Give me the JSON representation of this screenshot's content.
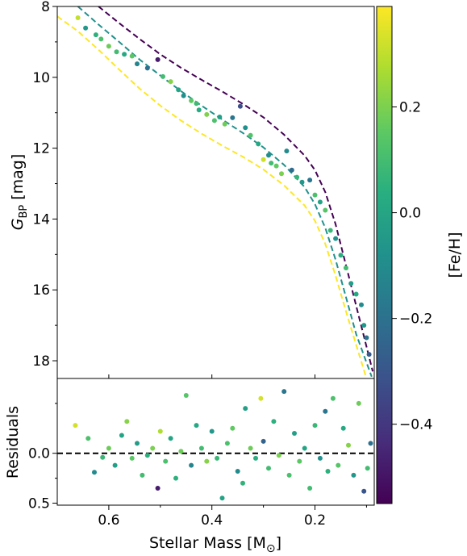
{
  "chart_data": [
    {
      "panel": "upper",
      "type": "scatter",
      "ylabel": "G_BP [mag]",
      "ylabel_main": "G",
      "ylabel_sub": "BP",
      "ylabel_unit": "[mag]",
      "xlim": [
        0.7,
        0.085
      ],
      "ylim": [
        18.5,
        8.0
      ],
      "yaxis_inverted": true,
      "yticks": [
        8,
        10,
        12,
        14,
        16,
        18
      ],
      "ytick_labels": [
        "8",
        "10",
        "12",
        "14",
        "16",
        "18"
      ],
      "grid": false,
      "series": [
        {
          "kind": "line",
          "style": "dashed",
          "color": "#440154",
          "points": [
            [
              0.62,
              8.0
            ],
            [
              0.58,
              8.47
            ],
            [
              0.54,
              8.92
            ],
            [
              0.5,
              9.35
            ],
            [
              0.46,
              9.73
            ],
            [
              0.42,
              10.07
            ],
            [
              0.38,
              10.4
            ],
            [
              0.34,
              10.75
            ],
            [
              0.3,
              11.13
            ],
            [
              0.26,
              11.62
            ],
            [
              0.22,
              12.21
            ],
            [
              0.2,
              12.62
            ],
            [
              0.18,
              13.24
            ],
            [
              0.16,
              14.15
            ],
            [
              0.14,
              15.3
            ],
            [
              0.12,
              16.45
            ],
            [
              0.1,
              17.6
            ],
            [
              0.088,
              18.3
            ]
          ]
        },
        {
          "kind": "line",
          "style": "dashed",
          "color": "#21918c",
          "points": [
            [
              0.66,
              8.0
            ],
            [
              0.62,
              8.51
            ],
            [
              0.58,
              9.0
            ],
            [
              0.54,
              9.5
            ],
            [
              0.5,
              9.95
            ],
            [
              0.46,
              10.39
            ],
            [
              0.42,
              10.8
            ],
            [
              0.38,
              11.19
            ],
            [
              0.34,
              11.57
            ],
            [
              0.3,
              11.98
            ],
            [
              0.26,
              12.47
            ],
            [
              0.22,
              13.1
            ],
            [
              0.2,
              13.58
            ],
            [
              0.18,
              14.25
            ],
            [
              0.16,
              15.15
            ],
            [
              0.14,
              16.2
            ],
            [
              0.12,
              17.25
            ],
            [
              0.1,
              18.05
            ],
            [
              0.09,
              18.45
            ]
          ]
        },
        {
          "kind": "line",
          "style": "dashed",
          "color": "#fde725",
          "points": [
            [
              0.7,
              8.28
            ],
            [
              0.66,
              8.7
            ],
            [
              0.62,
              9.22
            ],
            [
              0.58,
              9.78
            ],
            [
              0.54,
              10.32
            ],
            [
              0.5,
              10.8
            ],
            [
              0.46,
              11.22
            ],
            [
              0.42,
              11.59
            ],
            [
              0.38,
              11.93
            ],
            [
              0.34,
              12.24
            ],
            [
              0.3,
              12.6
            ],
            [
              0.26,
              13.05
            ],
            [
              0.22,
              13.62
            ],
            [
              0.2,
              14.05
            ],
            [
              0.18,
              14.7
            ],
            [
              0.16,
              15.6
            ],
            [
              0.14,
              16.6
            ],
            [
              0.12,
              17.55
            ],
            [
              0.1,
              18.5
            ]
          ]
        },
        {
          "kind": "points",
          "points": [
            [
              0.66,
              8.32,
              0.31
            ],
            [
              0.645,
              8.61,
              -0.05
            ],
            [
              0.625,
              8.8,
              0.05
            ],
            [
              0.615,
              8.92,
              0.12
            ],
            [
              0.6,
              9.12,
              0.18
            ],
            [
              0.585,
              9.28,
              0.1
            ],
            [
              0.57,
              9.35,
              0.02
            ],
            [
              0.555,
              9.4,
              0.15
            ],
            [
              0.545,
              9.62,
              -0.12
            ],
            [
              0.525,
              9.74,
              -0.2
            ],
            [
              0.505,
              9.5,
              -0.48
            ],
            [
              0.495,
              9.98,
              0.1
            ],
            [
              0.48,
              10.12,
              0.22
            ],
            [
              0.465,
              10.35,
              0.0
            ],
            [
              0.455,
              10.52,
              -0.08
            ],
            [
              0.44,
              10.66,
              0.16
            ],
            [
              0.43,
              10.74,
              0.09
            ],
            [
              0.425,
              10.92,
              0.03
            ],
            [
              0.41,
              11.05,
              0.21
            ],
            [
              0.395,
              11.22,
              0.12
            ],
            [
              0.385,
              11.12,
              -0.02
            ],
            [
              0.375,
              11.32,
              0.18
            ],
            [
              0.36,
              11.14,
              -0.18
            ],
            [
              0.345,
              10.82,
              -0.32
            ],
            [
              0.335,
              11.42,
              -0.08
            ],
            [
              0.325,
              11.64,
              0.13
            ],
            [
              0.31,
              11.88,
              0.02
            ],
            [
              0.3,
              12.32,
              0.32
            ],
            [
              0.29,
              12.2,
              -0.09
            ],
            [
              0.285,
              12.42,
              0.1
            ],
            [
              0.275,
              12.5,
              0.16
            ],
            [
              0.265,
              12.72,
              0.2
            ],
            [
              0.255,
              12.08,
              -0.1
            ],
            [
              0.245,
              12.62,
              -0.22
            ],
            [
              0.235,
              12.82,
              0.07
            ],
            [
              0.225,
              12.96,
              -0.05
            ],
            [
              0.21,
              12.9,
              -0.18
            ],
            [
              0.2,
              13.32,
              0.12
            ],
            [
              0.19,
              13.52,
              0.0
            ],
            [
              0.18,
              13.75,
              0.14
            ],
            [
              0.17,
              14.32,
              0.08
            ],
            [
              0.16,
              14.55,
              -0.07
            ],
            [
              0.15,
              15.02,
              0.04
            ],
            [
              0.14,
              15.38,
              0.1
            ],
            [
              0.13,
              15.82,
              -0.03
            ],
            [
              0.12,
              16.12,
              0.02
            ],
            [
              0.11,
              16.42,
              -0.1
            ],
            [
              0.105,
              17.0,
              -0.05
            ],
            [
              0.1,
              17.35,
              -0.18
            ],
            [
              0.095,
              17.82,
              -0.28
            ]
          ]
        }
      ]
    },
    {
      "panel": "lower",
      "type": "scatter",
      "xlabel": "Stellar Mass [M",
      "xlabel_sub": "⊙",
      "xlabel_close": "]",
      "ylabel": "Residuals",
      "xlim": [
        0.7,
        0.085
      ],
      "ylim": [
        0.52,
        -0.75
      ],
      "yaxis_inverted": true,
      "xticks": [
        0.6,
        0.4,
        0.2
      ],
      "xtick_labels": [
        "0.6",
        "0.4",
        "0.2"
      ],
      "yticks": [
        0.0,
        0.5
      ],
      "ytick_labels": [
        "0.0",
        "0.5"
      ],
      "reference_line": {
        "y": 0.0,
        "style": "dashed",
        "color": "#000000"
      },
      "grid": false,
      "points": [
        [
          0.665,
          -0.28,
          0.33
        ],
        [
          0.64,
          -0.15,
          0.12
        ],
        [
          0.628,
          0.19,
          -0.1
        ],
        [
          0.612,
          0.04,
          0.08
        ],
        [
          0.6,
          -0.05,
          0.18
        ],
        [
          0.588,
          0.12,
          -0.02
        ],
        [
          0.575,
          -0.18,
          0.0
        ],
        [
          0.565,
          -0.32,
          0.22
        ],
        [
          0.555,
          0.05,
          0.15
        ],
        [
          0.545,
          -0.1,
          -0.03
        ],
        [
          0.535,
          0.22,
          0.1
        ],
        [
          0.525,
          0.02,
          0.05
        ],
        [
          0.515,
          -0.05,
          0.2
        ],
        [
          0.505,
          0.35,
          -0.48
        ],
        [
          0.5,
          -0.22,
          0.28
        ],
        [
          0.49,
          0.08,
          0.12
        ],
        [
          0.48,
          -0.15,
          0.0
        ],
        [
          0.47,
          0.25,
          0.05
        ],
        [
          0.46,
          -0.02,
          0.18
        ],
        [
          0.45,
          -0.58,
          0.14
        ],
        [
          0.44,
          0.12,
          -0.12
        ],
        [
          0.43,
          -0.28,
          0.02
        ],
        [
          0.42,
          -0.05,
          0.1
        ],
        [
          0.41,
          0.08,
          0.22
        ],
        [
          0.4,
          -0.22,
          -0.05
        ],
        [
          0.39,
          0.05,
          0.08
        ],
        [
          0.38,
          0.45,
          0.0
        ],
        [
          0.37,
          -0.1,
          0.12
        ],
        [
          0.36,
          -0.25,
          0.16
        ],
        [
          0.35,
          0.18,
          -0.1
        ],
        [
          0.34,
          0.3,
          0.06
        ],
        [
          0.335,
          -0.45,
          -0.02
        ],
        [
          0.325,
          -0.05,
          0.18
        ],
        [
          0.315,
          0.05,
          0.04
        ],
        [
          0.305,
          -0.55,
          0.33
        ],
        [
          0.3,
          -0.12,
          -0.25
        ],
        [
          0.29,
          0.15,
          0.1
        ],
        [
          0.28,
          -0.32,
          0.05
        ],
        [
          0.27,
          0.02,
          0.2
        ],
        [
          0.26,
          -0.62,
          -0.18
        ],
        [
          0.25,
          0.22,
          0.12
        ],
        [
          0.24,
          -0.2,
          -0.02
        ],
        [
          0.23,
          0.08,
          0.15
        ],
        [
          0.22,
          -0.05,
          0.0
        ],
        [
          0.21,
          0.35,
          0.1
        ],
        [
          0.2,
          -0.28,
          0.08
        ],
        [
          0.19,
          0.05,
          -0.08
        ],
        [
          0.18,
          -0.42,
          -0.18
        ],
        [
          0.175,
          0.18,
          0.05
        ],
        [
          0.165,
          -0.55,
          0.12
        ],
        [
          0.155,
          0.12,
          0.14
        ],
        [
          0.145,
          -0.25,
          0.02
        ],
        [
          0.135,
          -0.08,
          0.22
        ],
        [
          0.125,
          0.22,
          -0.05
        ],
        [
          0.115,
          -0.5,
          0.18
        ],
        [
          0.105,
          0.38,
          -0.3
        ],
        [
          0.098,
          0.15,
          0.1
        ],
        [
          0.092,
          -0.1,
          -0.2
        ]
      ]
    },
    {
      "panel": "colorbar",
      "type": "colorbar",
      "label": "[Fe/H]",
      "colormap": "viridis",
      "range": [
        -0.55,
        0.39
      ],
      "ticks": [
        -0.4,
        -0.2,
        0.0,
        0.2
      ],
      "tick_labels": [
        "−0.4",
        "−0.2",
        "0.0",
        "0.2"
      ]
    }
  ]
}
